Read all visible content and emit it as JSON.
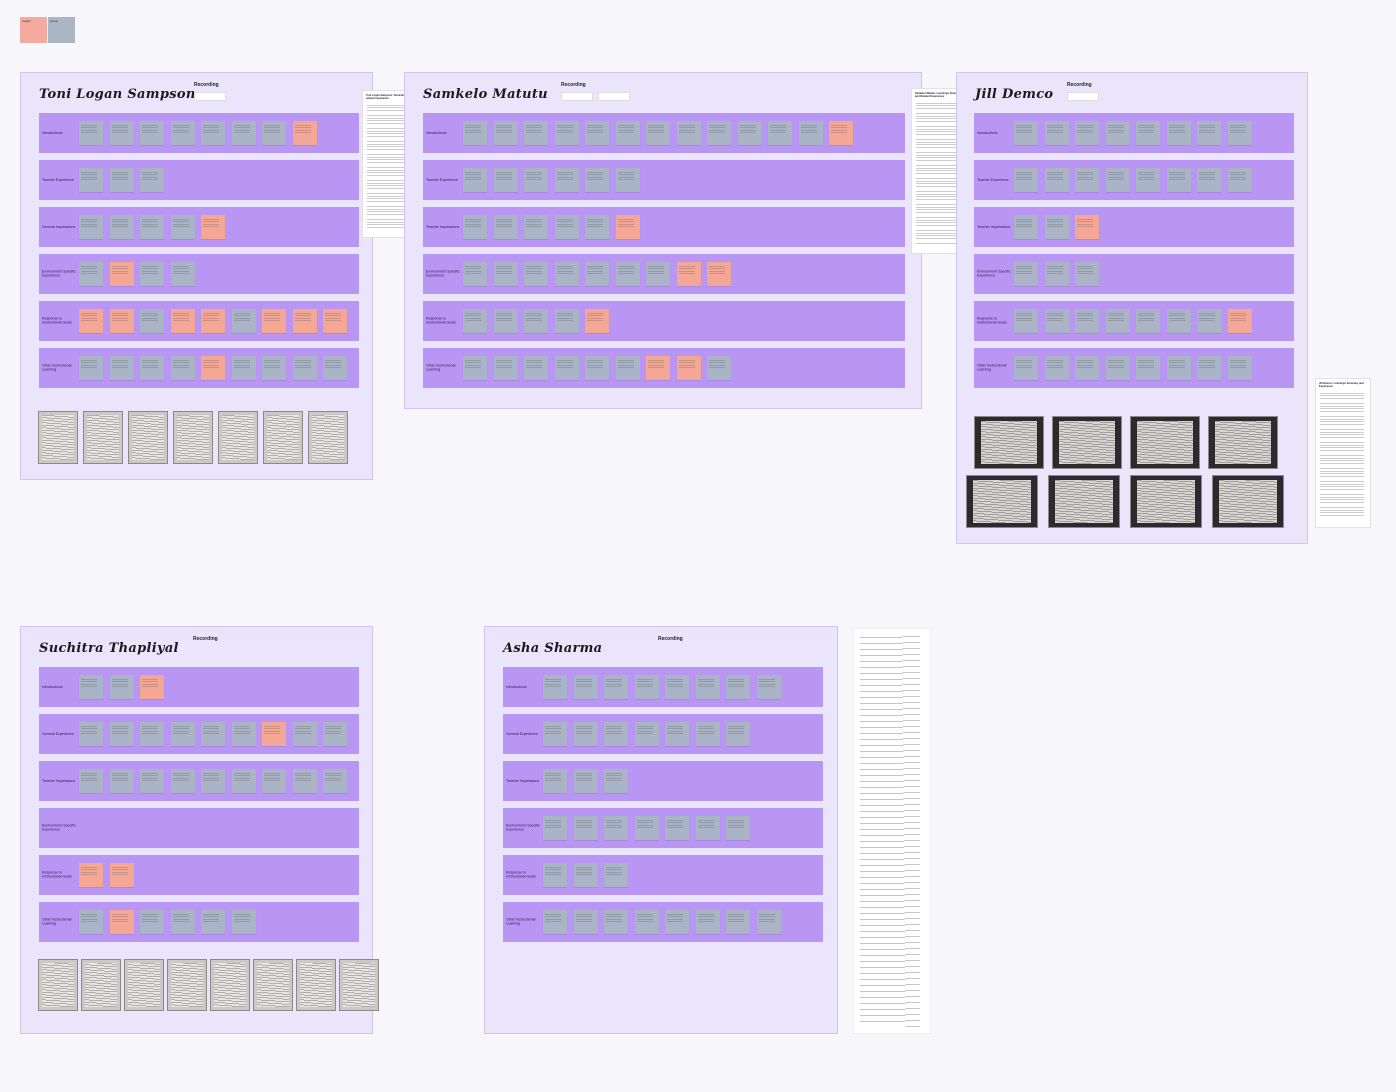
{
  "legend": {
    "pink_label": "Insight",
    "gray_label": "Quote",
    "pink_color": "#f4aa9e",
    "gray_color": "#aab6c6"
  },
  "colors": {
    "frame_bg": "#ebe5fb",
    "row_bg": "#b996f3",
    "sticky_gray": "#a9b4c6",
    "sticky_pink": "#f5a795"
  },
  "recording_label": "Recording",
  "participants": [
    {
      "name": "Toni Logan Sampson",
      "rows": [
        "Introductions",
        "Teacher Experience",
        "General Impressions",
        "Environment Specific Experience",
        "Response to Instructional Goals",
        "Other Instructional Learning"
      ]
    },
    {
      "name": "Samkelo Matutu",
      "rows": [
        "Introductions",
        "Teacher Experience",
        "Teacher Impressions",
        "Environment Specific Experience",
        "Response to Instructional Goals",
        "Other Instructional Learning"
      ]
    },
    {
      "name": "Jill Demco",
      "rows": [
        "Introductions",
        "Teacher Experience",
        "Teacher Impressions",
        "Environment Specific Experience",
        "Response to Instructional Goals",
        "Other Instructional Learning"
      ]
    },
    {
      "name": "Suchitra Thapliyal",
      "rows": [
        "Introductions",
        "General Experience",
        "Teacher Impressions",
        "Environment Specific Experience",
        "Response to Instructional Goals",
        "Other Instructional Learning"
      ]
    },
    {
      "name": "Asha Sharma",
      "rows": [
        "Introductions",
        "General Experience",
        "Teacher Impressions",
        "Environment Specific Experience",
        "Response to Instructional Goals",
        "Other Instructional Learning"
      ]
    }
  ],
  "docs": {
    "doc1_title": "Toni Logan Sampson: Summary and related experience",
    "doc2_title": "Samkelo Matutu: Learnings Summary and Related Experience",
    "doc3_title": "Jill Demco: Learnings Summary and Experience"
  }
}
